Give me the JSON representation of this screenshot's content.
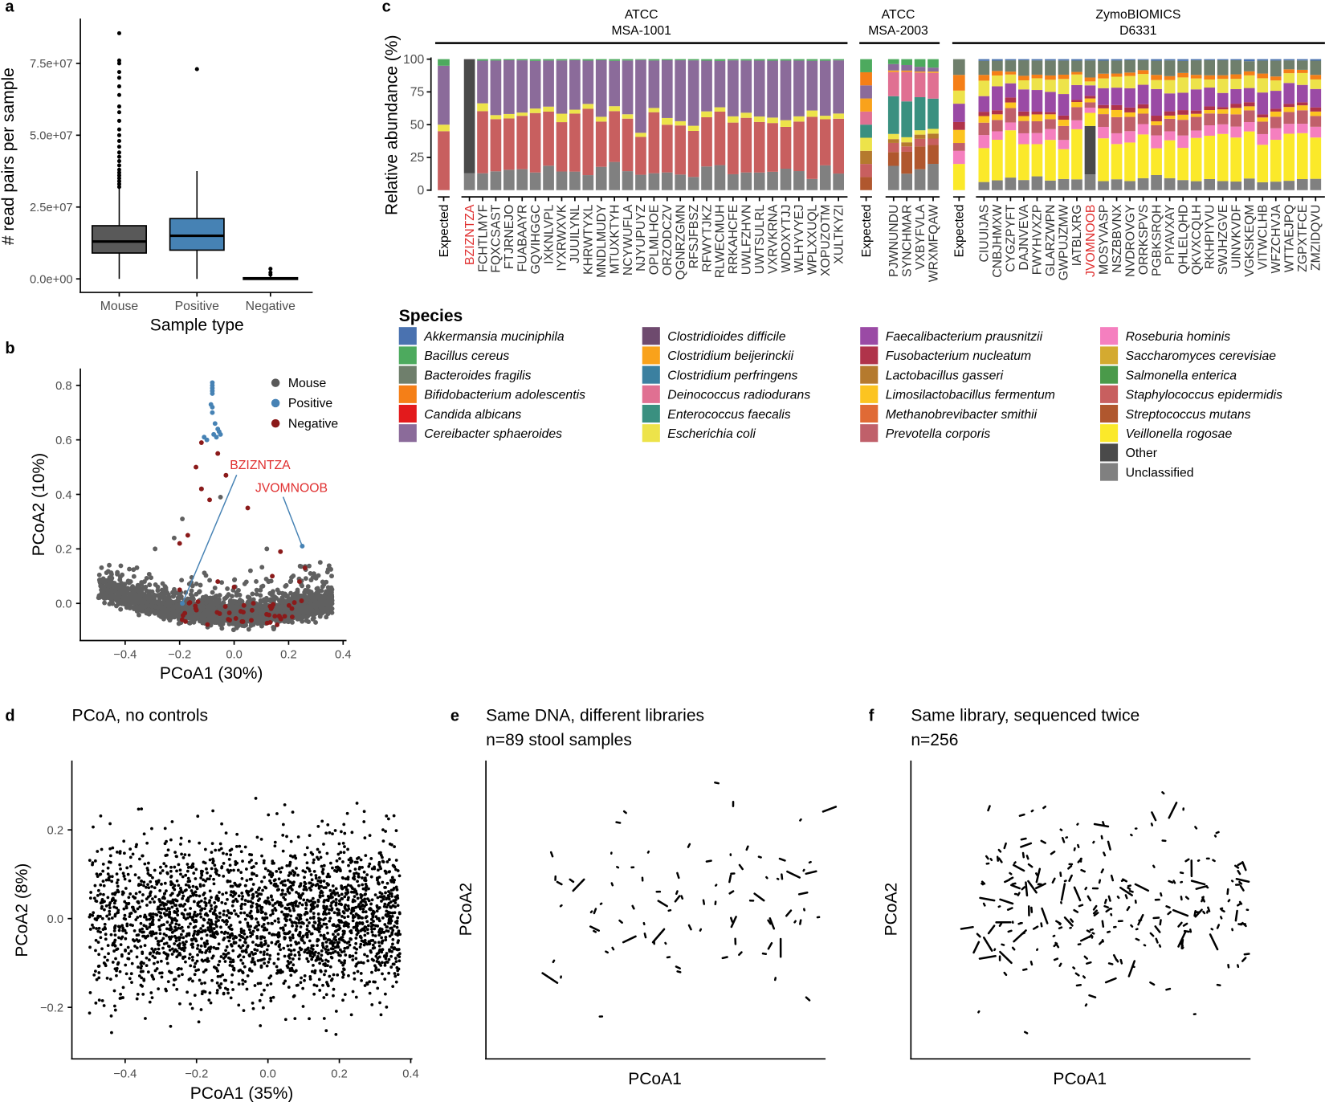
{
  "panel_labels": {
    "a": "a",
    "b": "b",
    "c": "c",
    "d": "d",
    "e": "e",
    "f": "f"
  },
  "chart_data": [
    {
      "id": "a",
      "type": "box",
      "xlabel": "Sample type",
      "ylabel": "# read pairs per sample",
      "ylim": [
        0,
        88000000
      ],
      "yticks": [
        0,
        25000000,
        50000000,
        75000000
      ],
      "ytick_labels": [
        "0.0e+00",
        "2.5e+07",
        "5.0e+07",
        "7.5e+07"
      ],
      "categories": [
        "Mouse",
        "Positive",
        "Negative"
      ],
      "colors": [
        "#595959",
        "#4682b4",
        "#595959"
      ],
      "boxes": [
        {
          "q1": 9000000,
          "median": 13000000,
          "q3": 18500000,
          "whisker_low": 0,
          "whisker_high": 31500000,
          "outliers": [
            32000000,
            33000000,
            34000000,
            35000000,
            36000000,
            37000000,
            38000000,
            39500000,
            41000000,
            42500000,
            44000000,
            46000000,
            48000000,
            50000000,
            52000000,
            55000000,
            58000000,
            60000000,
            64000000,
            67000000,
            70000000,
            72000000,
            75000000,
            76000000,
            85500000
          ]
        },
        {
          "q1": 10000000,
          "median": 15000000,
          "q3": 21000000,
          "whisker_low": 0,
          "whisker_high": 37500000,
          "outliers": [
            73000000
          ]
        },
        {
          "q1": 0,
          "median": 100000,
          "q3": 400000,
          "whisker_low": 0,
          "whisker_high": 900000,
          "outliers": [
            1500000,
            2200000,
            3500000
          ]
        }
      ]
    },
    {
      "id": "b",
      "type": "scatter",
      "xlabel": "PCoA1 (30%)",
      "ylabel": "PCoA2 (10%)",
      "xlim": [
        -0.55,
        0.4
      ],
      "ylim": [
        -0.1,
        0.85
      ],
      "xticks": [
        -0.4,
        -0.2,
        0.0,
        0.2,
        0.4
      ],
      "xtick_labels": [
        "−0.4",
        "−0.2",
        "0.0",
        "0.2",
        "0.4"
      ],
      "yticks": [
        0.0,
        0.2,
        0.4,
        0.6,
        0.8
      ],
      "ytick_labels": [
        "0.0",
        "0.2",
        "0.4",
        "0.6",
        "0.8"
      ],
      "legend": {
        "position": "top-right",
        "items": [
          {
            "name": "Mouse",
            "color": "#595959"
          },
          {
            "name": "Positive",
            "color": "#4682b4"
          },
          {
            "name": "Negative",
            "color": "#8b1a1a"
          }
        ]
      },
      "positive_points": [
        [
          -0.08,
          0.81
        ],
        [
          -0.08,
          0.8
        ],
        [
          -0.08,
          0.79
        ],
        [
          -0.08,
          0.78
        ],
        [
          -0.08,
          0.77
        ],
        [
          -0.085,
          0.73
        ],
        [
          -0.08,
          0.72
        ],
        [
          -0.08,
          0.7
        ],
        [
          -0.07,
          0.66
        ],
        [
          -0.06,
          0.64
        ],
        [
          -0.055,
          0.63
        ],
        [
          -0.075,
          0.62
        ],
        [
          -0.05,
          0.62
        ],
        [
          -0.11,
          0.61
        ],
        [
          -0.1,
          0.6
        ],
        [
          -0.065,
          0.61
        ],
        [
          -0.19,
          0.0
        ],
        [
          0.25,
          0.21
        ]
      ],
      "negative_points": [
        [
          -0.12,
          0.59
        ],
        [
          -0.06,
          0.55
        ],
        [
          -0.14,
          0.5
        ],
        [
          -0.03,
          0.47
        ],
        [
          -0.12,
          0.42
        ],
        [
          -0.09,
          0.38
        ],
        [
          0.05,
          0.35
        ],
        [
          -0.17,
          0.25
        ],
        [
          -0.2,
          0.22
        ],
        [
          0.17,
          0.19
        ],
        [
          0.26,
          0.13
        ],
        [
          0.14,
          0.1
        ],
        [
          -0.06,
          0.08
        ],
        [
          0.24,
          0.08
        ],
        [
          0.0,
          0.06
        ],
        [
          -0.2,
          0.05
        ]
      ],
      "annotations": [
        {
          "text": "BZIZNTZA",
          "point": [
            -0.19,
            0.0
          ],
          "color": "#e03030"
        },
        {
          "text": "JVOMNOOB",
          "point": [
            0.25,
            0.21
          ],
          "color": "#e03030"
        }
      ],
      "mouse_cloud": {
        "approx_points": 2500
      }
    },
    {
      "id": "c",
      "type": "stacked-bar",
      "ylabel": "Relative abundance (%)",
      "ylim": [
        0,
        100
      ],
      "yticks": [
        0,
        25,
        50,
        75,
        100
      ],
      "ytick_labels": [
        "0",
        "25",
        "50",
        "75",
        "100"
      ],
      "legend_title": "Species",
      "species": [
        {
          "name": "Akkermansia muciniphila",
          "color": "#4a72b0",
          "italic": true
        },
        {
          "name": "Bacillus cereus",
          "color": "#4daa5e",
          "italic": true
        },
        {
          "name": "Bacteroides fragilis",
          "color": "#6f7f6c",
          "italic": true
        },
        {
          "name": "Bifidobacterium adolescentis",
          "color": "#f57f17",
          "italic": true
        },
        {
          "name": "Candida albicans",
          "color": "#e31a1c",
          "italic": true
        },
        {
          "name": "Cereibacter sphaeroides",
          "color": "#8b6b9a",
          "italic": true
        },
        {
          "name": "Clostridioides difficile",
          "color": "#6e4a6e",
          "italic": true
        },
        {
          "name": "Clostridium beijerinckii",
          "color": "#f9a21b",
          "italic": true
        },
        {
          "name": "Clostridium perfringens",
          "color": "#3b80a0",
          "italic": true
        },
        {
          "name": "Deinococcus radiodurans",
          "color": "#e07092",
          "italic": true
        },
        {
          "name": "Enterococcus faecalis",
          "color": "#3a9080",
          "italic": true
        },
        {
          "name": "Escherichia coli",
          "color": "#ede34a",
          "italic": true
        },
        {
          "name": "Faecalibacterium prausnitzii",
          "color": "#9a4aa5",
          "italic": true
        },
        {
          "name": "Fusobacterium nucleatum",
          "color": "#b0334a",
          "italic": true
        },
        {
          "name": "Lactobacillus gasseri",
          "color": "#b57a2e",
          "italic": true
        },
        {
          "name": "Limosilactobacillus fermentum",
          "color": "#fcc420",
          "italic": true
        },
        {
          "name": "Methanobrevibacter smithii",
          "color": "#e06a35",
          "italic": true
        },
        {
          "name": "Prevotella corporis",
          "color": "#c0606a",
          "italic": true
        },
        {
          "name": "Roseburia hominis",
          "color": "#f57fbf",
          "italic": true
        },
        {
          "name": "Saccharomyces cerevisiae",
          "color": "#d4aa30",
          "italic": true
        },
        {
          "name": "Salmonella enterica",
          "color": "#4a9a4a",
          "italic": true
        },
        {
          "name": "Staphylococcus epidermidis",
          "color": "#c85f5f",
          "italic": true
        },
        {
          "name": "Streptococcus mutans",
          "color": "#b0572e",
          "italic": true
        },
        {
          "name": "Veillonella rogosae",
          "color": "#fbe92a",
          "italic": true
        },
        {
          "name": "Other",
          "color": "#4a4a4a",
          "italic": false
        },
        {
          "name": "Unclassified",
          "color": "#808080",
          "italic": false
        }
      ],
      "groups": [
        {
          "title_line1": "ATCC",
          "title_line2": "MSA-1001",
          "expected_label": "Expected",
          "expected": {
            "Staphylococcus epidermidis": 45,
            "Escherichia coli": 5,
            "Cereibacter sphaeroides": 45,
            "Bacillus cereus": 5
          },
          "typical_sample": {
            "Unclassified": 15,
            "Staphylococcus epidermidis": 38,
            "Escherichia coli": 4,
            "Cereibacter sphaeroides": 42,
            "Bacillus cereus": 1
          },
          "samples": [
            "BZIZNTZA",
            "FCHTLMYF",
            "FQXCSAST",
            "FTJRNEJO",
            "FUABAAYR",
            "GQVIHGGC",
            "IXKNLVPL",
            "IYXRWXVK",
            "JUUILYNL",
            "KHRWTYXL",
            "MNDLMUDY",
            "MTUXKTYH",
            "NCYWUFLA",
            "NJYUPUYZ",
            "OPLMLHOE",
            "ORZODCZV",
            "QGNRZGMN",
            "RFSJFBSZ",
            "RFWYTJKZ",
            "RLWECMUH",
            "RRKAHCFE",
            "UWLFZHVN",
            "UWTSULRL",
            "VXRVKRNA",
            "WDOXYTJJ",
            "WLHYVYEJ",
            "WPLXXUQL",
            "XOPUZOTM",
            "XULTKYZI"
          ],
          "highlight": {
            "BZIZNTZA": {
              "Unclassified": 13,
              "Other": 87
            }
          }
        },
        {
          "title_line1": "ATCC",
          "title_line2": "MSA-2003",
          "expected_label": "Expected",
          "expected": {
            "Streptococcus mutans": 10,
            "Staphylococcus epidermidis": 10,
            "Lactobacillus gasseri": 10,
            "Escherichia coli": 10,
            "Enterococcus faecalis": 10,
            "Deinococcus radiodurans": 10,
            "Clostridium beijerinckii": 10,
            "Cereibacter sphaeroides": 10,
            "Bifidobacterium adolescentis": 10,
            "Bacillus cereus": 10
          },
          "typical_sample": {
            "Unclassified": 17,
            "Streptococcus mutans": 14,
            "Staphylococcus epidermidis": 5,
            "Lactobacillus gasseri": 3,
            "Escherichia coli": 4,
            "Enterococcus faecalis": 26,
            "Deinococcus radiodurans": 20,
            "Clostridium beijerinckii": 1,
            "Cereibacter sphaeroides": 4,
            "Bacillus cereus": 6
          },
          "samples": [
            "PJWNUNDU",
            "SYNCHMAR",
            "VXBYFVLA",
            "WRXMFQAW"
          ],
          "highlight": {}
        },
        {
          "title_line1": "ZymoBIOMICS",
          "title_line2": "D6331",
          "expected_label": "Expected",
          "expected": {
            "Veillonella rogosae": 20,
            "Roseburia hominis": 10,
            "Prevotella corporis": 6,
            "Limosilactobacillus fermentum": 10,
            "Fusobacterium nucleatum": 6,
            "Faecalibacterium prausnitzii": 14,
            "Escherichia coli": 10,
            "Bifidobacterium adolescentis": 12,
            "Bacteroides fragilis": 12
          },
          "typical_sample": {
            "Unclassified": 8,
            "Veillonella rogosae": 30,
            "Roseburia hominis": 8,
            "Prevotella corporis": 9,
            "Limosilactobacillus fermentum": 4,
            "Fusobacterium nucleatum": 3,
            "Faecalibacterium prausnitzii": 15,
            "Escherichia coli": 9,
            "Bifidobacterium adolescentis": 3,
            "Bacteroides fragilis": 10,
            "Akkermansia muciniphila": 1
          },
          "samples": [
            "CIUUIJAS",
            "CNBJHMXW",
            "CYGZPYFT",
            "DAJNVEVA",
            "FWYHVXZP",
            "GLARZWPN",
            "GWPUJZMW",
            "IATBLXRG",
            "JVOMNOOB",
            "MOSYVASP",
            "NSZBBVNX",
            "NVDROVGY",
            "ORRKSPVS",
            "PGBKSRQH",
            "PIYAVXAY",
            "QHLELQHD",
            "QKVXCQLH",
            "RKHPIYVU",
            "SWJHZGVE",
            "UINVKVDF",
            "VGKSKEQM",
            "VITWCLHB",
            "WFZCHVJA",
            "WTTAEJPQ",
            "ZGPXTFCE",
            "ZMZIDQVU"
          ],
          "highlight": {
            "JVOMNOOB": {
              "Unclassified": 12,
              "Other": 37,
              "Veillonella rogosae": 10,
              "Roseburia hominis": 4,
              "Prevotella corporis": 4,
              "Limosilactobacillus fermentum": 3,
              "Fusobacterium nucleatum": 2,
              "Faecalibacterium prausnitzii": 8,
              "Escherichia coli": 3,
              "Bifidobacterium adolescentis": 3,
              "Bacteroides fragilis": 13,
              "Akkermansia muciniphila": 1
            }
          }
        }
      ],
      "highlight_color": "#e03030"
    },
    {
      "id": "d",
      "type": "scatter",
      "title": "PCoA, no controls",
      "xlabel": "PCoA1 (35%)",
      "ylabel": "PCoA2 (8%)",
      "xlim": [
        -0.55,
        0.4
      ],
      "ylim": [
        -0.3,
        0.35
      ],
      "xticks": [
        -0.4,
        -0.2,
        0.0,
        0.2,
        0.4
      ],
      "xtick_labels": [
        "−0.4",
        "−0.2",
        "0.0",
        "0.2",
        "0.4"
      ],
      "yticks": [
        -0.2,
        0.0,
        0.2
      ],
      "ytick_labels": [
        "−0.2",
        "0.0",
        "0.2"
      ],
      "approx_points": 2500
    },
    {
      "id": "e",
      "type": "scatter-pairs",
      "title": "Same DNA, different libraries",
      "subtitle": "n=89 stool samples",
      "xlabel": "PCoA1",
      "ylabel": "PCoA2",
      "pairs": 89
    },
    {
      "id": "f",
      "type": "scatter-pairs",
      "title": "Same library, sequenced twice",
      "subtitle": "n=256",
      "xlabel": "PCoA1",
      "ylabel": "PCoA2",
      "pairs": 256
    }
  ]
}
